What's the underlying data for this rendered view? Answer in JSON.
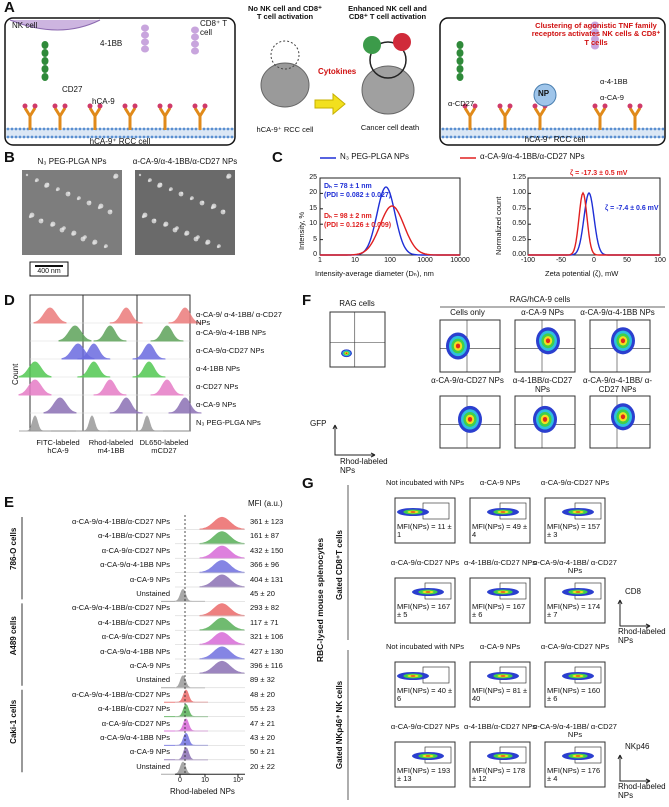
{
  "panel_a": {
    "label": "A",
    "left_box": {
      "nk_cell": "NK cell",
      "t_cell": "CD8⁺ T cell",
      "r41bb": "4-1BB",
      "cd27": "CD27",
      "ca9": "hCA-9",
      "cell": "hCA-9⁺ RCC cell"
    },
    "middle": {
      "before": "No NK cell and CD8⁺ T cell activation",
      "after": "Enhanced NK cell and CD8⁺ T cell activation",
      "cytokines": "Cytokines",
      "cell": "hCA-9⁺ RCC cell",
      "death": "Cancer cell death"
    },
    "right_box": {
      "caption": "Clustering of agonistic TNF family receptors activates NK cells & CD8⁺ T cells",
      "anti_41bb": "α-4-1BB",
      "anti_ca9": "α-CA-9",
      "anti_cd27": "α-CD27",
      "np": "NP",
      "cell": "hCA-9⁺ RCC cell"
    }
  },
  "panel_b": {
    "label": "B",
    "titles": [
      "N₃ PEG-PLGA NPs",
      "α-CA-9/α-4-1BB/α-CD27 NPs"
    ],
    "scale_bar": "400 nm"
  },
  "panel_c": {
    "label": "C",
    "legend": [
      {
        "name": "N₃ PEG-PLGA NPs",
        "color": "#1f2fd6"
      },
      {
        "name": "α-CA-9/α-4-1BB/α-CD27 NPs",
        "color": "#e02020"
      }
    ],
    "size_plot": {
      "y_label": "Intensity, %",
      "x_label": "Intensity-average diameter (Dₕ), nm",
      "yticks": [
        "0",
        "5",
        "10",
        "15",
        "20",
        "25"
      ],
      "xticks": [
        "1",
        "10",
        "100",
        "1000",
        "10000"
      ],
      "notes": [
        [
          "Dₕ = 78 ± 1 nm",
          "(PDI = 0.082 ± 0.027)"
        ],
        [
          "Dₕ = 98 ± 2 nm",
          "(PDI = 0.126 ± 0.009)"
        ]
      ]
    },
    "zeta_plot": {
      "y_label": "Normalized count",
      "x_label": "Zeta potential (ζ), mW",
      "yticks": [
        "0.00",
        "0.25",
        "0.50",
        "0.75",
        "1.00",
        "1.25"
      ],
      "xticks": [
        "-100",
        "-50",
        "0",
        "50",
        "100"
      ],
      "notes": [
        "ζ = -7.4 ± 0.6 mV",
        "ζ = -17.3 ± 0.5 mV"
      ]
    }
  },
  "panel_d": {
    "label": "D",
    "y_label": "Count",
    "rows": [
      {
        "name": "α-CA-9/ α-4-1BB/ α-CD27 NPs",
        "color": "#ec7b7b"
      },
      {
        "name": "α-CA-9/α-4-1BB NPs",
        "color": "#5ea35a"
      },
      {
        "name": "α-CA-9/α-CD27 NPs",
        "color": "#6b6be0"
      },
      {
        "name": "α-4-1BB NPs",
        "color": "#52c852"
      },
      {
        "name": "α-CD27 NPs",
        "color": "#e67cc6"
      },
      {
        "name": "α-CA-9 NPs",
        "color": "#8b70b5"
      },
      {
        "name": "N₃ PEG-PLGA NPs",
        "color": "#9a9a9a"
      }
    ],
    "x_labels": [
      "FITC-labeled hCA-9",
      "Rhod-labeled m4-1BB",
      "DL650-labeled mCD27"
    ]
  },
  "panel_e": {
    "label": "E",
    "mfi_header": "MFI (a.u.)",
    "x_label": "Rhod-labeled NPs",
    "xticks": [
      "0",
      "10",
      "10³"
    ],
    "groups": [
      {
        "name": "786-O cells",
        "rows": [
          [
            "α-CA-9/α-4-1BB/α-CD27 NPs",
            "361 ± 123"
          ],
          [
            "α-4-1BB/α-CD27 NPs",
            "161 ± 87"
          ],
          [
            "α-CA-9/α-CD27 NPs",
            "432 ± 150"
          ],
          [
            "α-CA-9/α-4-1BB NPs",
            "366 ± 96"
          ],
          [
            "α-CA-9 NPs",
            "404 ± 131"
          ],
          [
            "Unstained",
            "45 ± 20"
          ]
        ]
      },
      {
        "name": "A489 cells",
        "rows": [
          [
            "α-CA-9/α-4-1BB/α-CD27 NPs",
            "293 ± 82"
          ],
          [
            "α-4-1BB/α-CD27 NPs",
            "117 ± 71"
          ],
          [
            "α-CA-9/α-CD27 NPs",
            "321 ± 106"
          ],
          [
            "α-CA-9/α-4-1BB NPs",
            "427 ± 130"
          ],
          [
            "α-CA-9 NPs",
            "396 ± 116"
          ],
          [
            "Unstained",
            "89 ± 32"
          ]
        ]
      },
      {
        "name": "Caki-1 cells",
        "rows": [
          [
            "α-CA-9/α-4-1BB/α-CD27 NPs",
            "48 ± 20"
          ],
          [
            "α-4-1BB/α-CD27 NPs",
            "55 ± 23"
          ],
          [
            "α-CA-9/α-CD27 NPs",
            "47 ± 21"
          ],
          [
            "α-CA-9/α-4-1BB NPs",
            "43 ± 20"
          ],
          [
            "α-CA-9 NPs",
            "50 ± 21"
          ],
          [
            "Unstained",
            "20 ± 22"
          ]
        ]
      }
    ],
    "row_colors": [
      "#ec6b6b",
      "#58b058",
      "#d86ad8",
      "#7070e0",
      "#8b70b5",
      "#9a9a9a"
    ]
  },
  "panel_f": {
    "label": "F",
    "control_title": "RAG cells",
    "group_title": "RAG/hCA-9 cells",
    "plots": [
      "Cells only",
      "α-CA-9 NPs",
      "α-CA-9/α-4-1BB NPs",
      "α-CA-9/α-CD27 NPs",
      "α-4-1BB/α-CD27 NPs",
      "α-CA-9/α-4-1BB/ α-CD27 NPs"
    ],
    "y_label": "GFP",
    "x_label": "Rhod-labeled NPs"
  },
  "panel_g": {
    "label": "G",
    "side_title": "RBC-lysed mouse splenocytes",
    "groups": [
      {
        "name": "Gated CD8⁺T cells",
        "y_label": "CD8",
        "x_label": "Rhod-labeled NPs",
        "plots": [
          [
            "Not incubated with NPs",
            "MFI(NPs) = 11 ± 1"
          ],
          [
            "α-CA-9 NPs",
            "MFI(NPs) = 49 ± 4"
          ],
          [
            "α-CA-9/α-CD27 NPs",
            "MFI(NPs) = 157 ± 3"
          ],
          [
            "α-CA-9/α-CD27 NPs",
            "MFI(NPs) = 167 ± 5"
          ],
          [
            "α-4-1BB/α-CD27 NPs",
            "MFI(NPs) = 167 ± 6"
          ],
          [
            "α-CA-9/α-4-1BB/ α-CD27 NPs",
            "MFI(NPs) = 174 ± 7"
          ]
        ]
      },
      {
        "name": "Gated NKp46⁺ NK cells",
        "y_label": "NKp46",
        "x_label": "Rhod-labeled NPs",
        "plots": [
          [
            "Not incubated with NPs",
            "MFI(NPs) = 40 ± 6"
          ],
          [
            "α-CA-9 NPs",
            "MFI(NPs) = 81 ± 40"
          ],
          [
            "α-CA-9/α-CD27 NPs",
            "MFI(NPs) = 160 ± 6"
          ],
          [
            "α-CA-9/α-CD27 NPs",
            "MFI(NPs) = 193 ± 13"
          ],
          [
            "α-4-1BB/α-CD27 NPs",
            "MFI(NPs) = 178 ± 12"
          ],
          [
            "α-CA-9/α-4-1BB/ α-CD27 NPs",
            "MFI(NPs) = 176 ± 4"
          ]
        ]
      }
    ]
  }
}
